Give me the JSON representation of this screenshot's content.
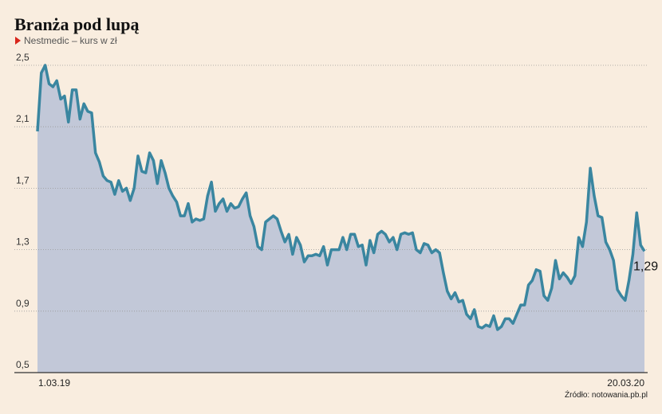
{
  "chart_data": {
    "type": "area",
    "title": "Branża pod lupą",
    "subtitle": "Nestmedic – kurs w zł",
    "source": "Źródło: notowania.pb.pl",
    "categories": [
      "1.03.19",
      null,
      null,
      null,
      null,
      null,
      null,
      null,
      null,
      null,
      null,
      null,
      null,
      null,
      null,
      null,
      null,
      null,
      null,
      null,
      null,
      null,
      null,
      null,
      null,
      null,
      null,
      null,
      null,
      null,
      null,
      null,
      null,
      null,
      null,
      null,
      null,
      null,
      null,
      null,
      null,
      null,
      null,
      null,
      null,
      null,
      null,
      null,
      null,
      null,
      null,
      null,
      null,
      null,
      null,
      null,
      null,
      null,
      null,
      null,
      null,
      null,
      null,
      null,
      null,
      null,
      null,
      null,
      null,
      null,
      null,
      null,
      null,
      null,
      null,
      null,
      null,
      null,
      null,
      null,
      null,
      null,
      null,
      null,
      null,
      null,
      null,
      null,
      null,
      null,
      null,
      null,
      null,
      null,
      null,
      null,
      null,
      null,
      null,
      null,
      null,
      null,
      null,
      null,
      null,
      null,
      null,
      null,
      null,
      null,
      null,
      null,
      null,
      null,
      null,
      null,
      null,
      null,
      null,
      null,
      null,
      null,
      null,
      null,
      null,
      null,
      null,
      null,
      null,
      null,
      null,
      null,
      null,
      null,
      null,
      null,
      null,
      null,
      null,
      null,
      null,
      null,
      null,
      null,
      null,
      null,
      null,
      null,
      null,
      null,
      null,
      null,
      null,
      null,
      null,
      null,
      null,
      "20.03.20"
    ],
    "values": [
      2.07,
      2.45,
      2.5,
      2.38,
      2.36,
      2.4,
      2.28,
      2.3,
      2.13,
      2.34,
      2.34,
      2.15,
      2.25,
      2.2,
      2.19,
      1.93,
      1.87,
      1.78,
      1.75,
      1.74,
      1.66,
      1.75,
      1.68,
      1.7,
      1.62,
      1.7,
      1.91,
      1.81,
      1.8,
      1.93,
      1.88,
      1.73,
      1.88,
      1.8,
      1.7,
      1.65,
      1.61,
      1.52,
      1.52,
      1.6,
      1.48,
      1.5,
      1.49,
      1.5,
      1.65,
      1.74,
      1.55,
      1.6,
      1.63,
      1.55,
      1.6,
      1.57,
      1.58,
      1.63,
      1.67,
      1.52,
      1.45,
      1.32,
      1.3,
      1.48,
      1.5,
      1.52,
      1.5,
      1.42,
      1.35,
      1.4,
      1.27,
      1.38,
      1.33,
      1.22,
      1.26,
      1.26,
      1.27,
      1.26,
      1.32,
      1.2,
      1.3,
      1.3,
      1.3,
      1.38,
      1.3,
      1.4,
      1.4,
      1.32,
      1.33,
      1.2,
      1.36,
      1.28,
      1.4,
      1.42,
      1.4,
      1.35,
      1.38,
      1.3,
      1.4,
      1.41,
      1.4,
      1.41,
      1.3,
      1.28,
      1.34,
      1.33,
      1.28,
      1.3,
      1.28,
      1.15,
      1.03,
      0.98,
      1.02,
      0.96,
      0.97,
      0.88,
      0.85,
      0.91,
      0.8,
      0.79,
      0.81,
      0.8,
      0.87,
      0.78,
      0.8,
      0.85,
      0.85,
      0.82,
      0.88,
      0.94,
      0.94,
      1.07,
      1.1,
      1.17,
      1.16,
      1.0,
      0.97,
      1.05,
      1.23,
      1.11,
      1.15,
      1.12,
      1.08,
      1.13,
      1.38,
      1.32,
      1.48,
      1.83,
      1.65,
      1.52,
      1.51,
      1.35,
      1.3,
      1.23,
      1.04,
      1.0,
      0.97,
      1.1,
      1.27,
      1.54,
      1.33,
      1.29
    ],
    "value_labels": [
      null,
      null,
      null,
      null,
      null,
      null,
      null,
      null,
      null,
      null,
      null,
      null,
      null,
      null,
      null,
      null,
      null,
      null,
      null,
      null,
      null,
      null,
      null,
      null,
      null,
      null,
      null,
      null,
      null,
      null,
      null,
      null,
      null,
      null,
      null,
      null,
      null,
      null,
      null,
      null,
      null,
      null,
      null,
      null,
      null,
      null,
      null,
      null,
      null,
      null,
      null,
      null,
      null,
      null,
      null,
      null,
      null,
      null,
      null,
      null,
      null,
      null,
      null,
      null,
      null,
      null,
      null,
      null,
      null,
      null,
      null,
      null,
      null,
      null,
      null,
      null,
      null,
      null,
      null,
      null,
      null,
      null,
      null,
      null,
      null,
      null,
      null,
      null,
      null,
      null,
      null,
      null,
      null,
      null,
      null,
      null,
      null,
      null,
      null,
      null,
      null,
      null,
      null,
      null,
      null,
      null,
      null,
      null,
      null,
      null,
      null,
      null,
      null,
      null,
      null,
      null,
      null,
      null,
      null,
      null,
      null,
      null,
      null,
      null,
      null,
      null,
      null,
      null,
      null,
      null,
      null,
      null,
      null,
      null,
      null,
      null,
      null,
      null,
      null,
      null,
      null,
      null,
      null,
      null,
      null,
      null,
      null,
      null,
      null,
      null,
      null,
      null,
      null,
      null,
      null,
      null,
      null,
      "1,29"
    ],
    "color": "#3a86a0",
    "fill": "#c2c8d8",
    "ylim": [
      0.5,
      2.5
    ],
    "yticks": [
      {
        "value": 0.5,
        "label": "0,5"
      },
      {
        "value": 0.9,
        "label": "0,9"
      },
      {
        "value": 1.3,
        "label": "1,3"
      },
      {
        "value": 1.7,
        "label": "1,7"
      },
      {
        "value": 2.1,
        "label": "2,1"
      },
      {
        "value": 2.5,
        "label": "2,5"
      }
    ],
    "grid": true
  }
}
